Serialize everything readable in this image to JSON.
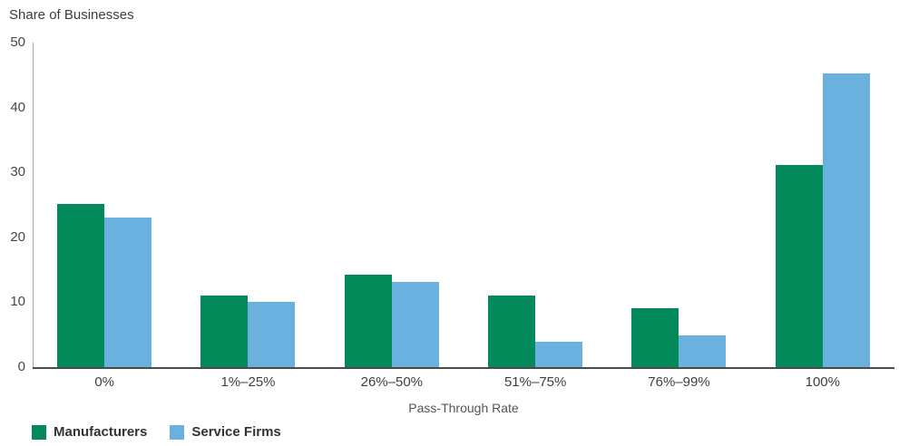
{
  "chart_title": "Share of Businesses",
  "x_axis_title": "Pass-Through Rate",
  "colors": {
    "manufacturers_green": "#03895a",
    "service_firms_blue": "#6bb1e0",
    "axis_line": "#4a4a4a",
    "y_axis_line": "#a6a6a6",
    "text": "#3f3f3f"
  },
  "legend": {
    "items": [
      {
        "label": "Manufacturers",
        "color": "#03895a"
      },
      {
        "label": "Service Firms",
        "color": "#6bb1e0"
      }
    ]
  },
  "chart_data": {
    "type": "bar",
    "title": "Share of Businesses",
    "xlabel": "Pass-Through Rate",
    "ylabel": "Share of Businesses",
    "categories": [
      "0%",
      "1%–25%",
      "26%–50%",
      "51%–75%",
      "76%–99%",
      "100%"
    ],
    "series": [
      {
        "name": "Manufacturers",
        "color": "#03895a",
        "values": [
          25.2,
          11.1,
          14.2,
          11.1,
          9.1,
          31.2
        ]
      },
      {
        "name": "Service Firms",
        "color": "#6bb1e0",
        "values": [
          23.1,
          10.1,
          13.1,
          3.9,
          4.9,
          45.2
        ]
      }
    ],
    "ylim": [
      0,
      50
    ],
    "y_ticks": [
      0,
      10,
      20,
      30,
      40,
      50
    ],
    "grid": false,
    "legend_position": "bottom-left"
  }
}
